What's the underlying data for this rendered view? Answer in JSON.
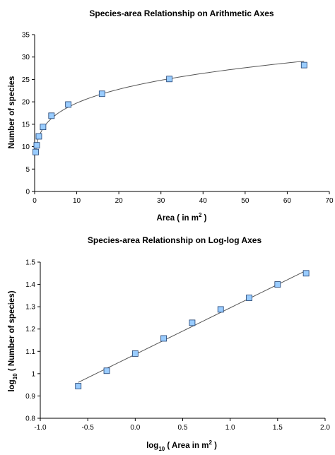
{
  "chart_data": [
    {
      "type": "scatter",
      "title": "Species-area Relationship on Arithmetic Axes",
      "xlabel": {
        "text": "Area ( in m",
        "sup": "2",
        "suffix": " )"
      },
      "ylabel": {
        "text": "Number of species"
      },
      "xlim": [
        0,
        70
      ],
      "ylim": [
        0,
        35
      ],
      "xticks": [
        0,
        10,
        20,
        30,
        40,
        50,
        60,
        70
      ],
      "yticks": [
        0,
        5,
        10,
        15,
        20,
        25,
        30,
        35
      ],
      "xtick_labels": [
        "0",
        "10",
        "20",
        "30",
        "40",
        "50",
        "60",
        "70"
      ],
      "ytick_labels": [
        "0",
        "5",
        "10",
        "15",
        "20",
        "25",
        "30",
        "35"
      ],
      "grid": false,
      "legend": "none",
      "marker_color": "#99ccff",
      "series": [
        {
          "x": [
            0.25,
            0.5,
            1,
            2,
            4,
            8,
            16,
            32,
            64
          ],
          "values": [
            8.8,
            10.3,
            12.3,
            14.4,
            16.9,
            19.4,
            21.8,
            25.1,
            28.2
          ]
        }
      ],
      "trendline": {
        "type": "power",
        "coefficient": 12.2,
        "exponent": 0.2088,
        "x_range": [
          0.25,
          64
        ]
      }
    },
    {
      "type": "scatter",
      "title": "Species-area Relationship on Log-log Axes",
      "xlabel": {
        "text": "log",
        "sub": "10",
        "suffix": " ( Area in m",
        "sup": "2",
        "suffix2": " )"
      },
      "ylabel": {
        "text": "log",
        "sub": "10",
        "suffix": " ( Number of species)"
      },
      "xlim": [
        -1.0,
        2.0
      ],
      "ylim": [
        0.8,
        1.5
      ],
      "xticks": [
        -1.0,
        -0.5,
        0.0,
        0.5,
        1.0,
        1.5,
        2.0
      ],
      "yticks": [
        0.8,
        0.9,
        1.0,
        1.1,
        1.2,
        1.3,
        1.4,
        1.5
      ],
      "xtick_labels": [
        "-1.0",
        "-0.5",
        "0.0",
        "0.5",
        "1.0",
        "1.5",
        "2.0"
      ],
      "ytick_labels": [
        "0.8",
        "0.9",
        "1",
        "1.1",
        "1.2",
        "1.3",
        "1.4",
        "1.5"
      ],
      "grid": false,
      "legend": "none",
      "marker_color": "#99ccff",
      "series": [
        {
          "x": [
            -0.6,
            -0.3,
            0.0,
            0.3,
            0.6,
            0.9,
            1.2,
            1.5,
            1.8
          ],
          "values": [
            0.944,
            1.013,
            1.09,
            1.158,
            1.228,
            1.288,
            1.34,
            1.4,
            1.45
          ]
        }
      ],
      "trendline": {
        "type": "linear",
        "slope": 0.2088,
        "intercept": 1.0863,
        "x_range": [
          -0.6,
          1.8
        ]
      }
    }
  ]
}
